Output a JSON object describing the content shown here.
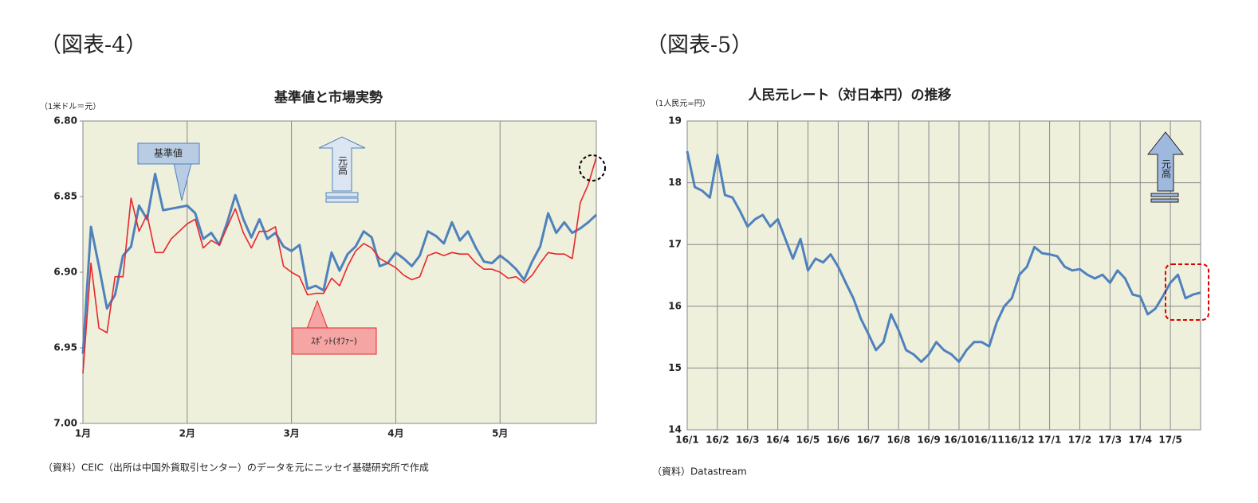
{
  "chart_data": [
    {
      "type": "line",
      "figure_label": "（図表-4）",
      "title": "基準値と市場実勢",
      "y_label": "（1米ドル＝元）",
      "source": "（資料）CEIC（出所は中国外貨取引センター）のデータを元にニッセイ基礎研究所で作成",
      "categories": [
        "1月",
        null,
        null,
        null,
        null,
        null,
        null,
        null,
        null,
        null,
        null,
        null,
        null,
        "2月",
        null,
        null,
        null,
        null,
        null,
        null,
        null,
        null,
        null,
        null,
        null,
        null,
        "3月",
        null,
        null,
        null,
        null,
        null,
        null,
        null,
        null,
        null,
        null,
        null,
        null,
        "4月",
        null,
        null,
        null,
        null,
        null,
        null,
        null,
        null,
        null,
        null,
        null,
        null,
        "5月",
        null,
        null,
        null,
        null,
        null,
        null,
        null,
        null,
        null,
        null,
        null,
        null
      ],
      "series": [
        {
          "name": "基準値",
          "color": "#4f81bd",
          "values": [
            6.954,
            6.87,
            6.896,
            6.924,
            6.915,
            6.889,
            6.883,
            6.856,
            6.865,
            6.835,
            6.859,
            6.858,
            6.857,
            6.856,
            6.861,
            6.878,
            6.874,
            6.882,
            6.867,
            6.849,
            6.865,
            6.877,
            6.865,
            6.878,
            6.874,
            6.883,
            6.886,
            6.882,
            6.911,
            6.909,
            6.912,
            6.887,
            6.899,
            6.888,
            6.883,
            6.873,
            6.877,
            6.896,
            6.894,
            6.887,
            6.891,
            6.896,
            6.889,
            6.873,
            6.876,
            6.881,
            6.867,
            6.879,
            6.873,
            6.884,
            6.893,
            6.894,
            6.889,
            6.893,
            6.898,
            6.905,
            6.893,
            6.883,
            6.861,
            6.874,
            6.867,
            6.874,
            6.871,
            6.867,
            6.862
          ]
        },
        {
          "name": "ｽﾎﾟｯﾄ(ｵﾌｧｰ)",
          "color": "#e8262b",
          "values": [
            6.967,
            6.894,
            6.937,
            6.94,
            6.903,
            6.903,
            6.851,
            6.873,
            6.862,
            6.887,
            6.887,
            6.878,
            6.873,
            6.868,
            6.865,
            6.884,
            6.879,
            6.882,
            6.87,
            6.858,
            6.874,
            6.884,
            6.873,
            6.873,
            6.87,
            6.896,
            6.9,
            6.903,
            6.915,
            6.914,
            6.914,
            6.904,
            6.909,
            6.896,
            6.886,
            6.881,
            6.884,
            6.891,
            6.894,
            6.897,
            6.902,
            6.905,
            6.903,
            6.889,
            6.887,
            6.889,
            6.887,
            6.888,
            6.888,
            6.894,
            6.898,
            6.898,
            6.9,
            6.904,
            6.903,
            6.907,
            6.902,
            6.894,
            6.887,
            6.888,
            6.888,
            6.891,
            6.854,
            6.842,
            6.824
          ]
        }
      ],
      "ylim": [
        6.8,
        7.0
      ],
      "y_inverted": true,
      "yticks": [
        {
          "value": 6.8,
          "label": "6.80"
        },
        6.85,
        {
          "value": 6.9,
          "label": "6.90"
        },
        6.95,
        {
          "value": 7.0,
          "label": "7.00"
        }
      ],
      "xgrid": true,
      "ygrid": false,
      "annotation": "元高"
    },
    {
      "type": "line",
      "figure_label": "（図表-5）",
      "title": "人民元レート（対日本円）の推移",
      "y_label": "（1人民元=円）",
      "source": "（資料）Datastream",
      "categories": [
        "16/1",
        null,
        null,
        null,
        "16/2",
        null,
        null,
        null,
        "16/3",
        null,
        null,
        null,
        "16/4",
        null,
        null,
        null,
        "16/5",
        null,
        null,
        null,
        "16/6",
        null,
        null,
        null,
        "16/7",
        null,
        null,
        null,
        "16/8",
        null,
        null,
        null,
        "16/9",
        null,
        null,
        null,
        "16/10",
        null,
        null,
        null,
        "16/11",
        null,
        null,
        null,
        "16/12",
        null,
        null,
        null,
        "17/1",
        null,
        null,
        null,
        "17/2",
        null,
        null,
        null,
        "17/3",
        null,
        null,
        null,
        "17/4",
        null,
        null,
        null,
        "17/5",
        null,
        null,
        null,
        null
      ],
      "series": [
        {
          "color": "#4f81bd",
          "values": [
            18.51,
            17.93,
            17.87,
            17.76,
            18.45,
            17.8,
            17.76,
            17.54,
            17.29,
            17.41,
            17.48,
            17.29,
            17.41,
            17.09,
            16.77,
            17.09,
            16.58,
            16.77,
            16.71,
            16.84,
            16.64,
            16.38,
            16.13,
            15.8,
            15.55,
            15.29,
            15.42,
            15.87,
            15.61,
            15.29,
            15.22,
            15.1,
            15.22,
            15.42,
            15.29,
            15.22,
            15.1,
            15.29,
            15.42,
            15.42,
            15.35,
            15.74,
            16.0,
            16.13,
            16.51,
            16.64,
            16.96,
            16.86,
            16.84,
            16.81,
            16.64,
            16.58,
            16.6,
            16.51,
            16.45,
            16.51,
            16.38,
            16.58,
            16.45,
            16.19,
            16.16,
            15.87,
            15.96,
            16.16,
            16.38,
            16.51,
            16.13,
            16.19,
            16.22
          ]
        }
      ],
      "ylim": [
        14,
        19
      ],
      "y_inverted": false,
      "yticks": [
        14,
        15,
        16,
        17,
        18,
        19
      ],
      "xgrid": true,
      "ygrid": true,
      "annotation": "元高"
    }
  ]
}
